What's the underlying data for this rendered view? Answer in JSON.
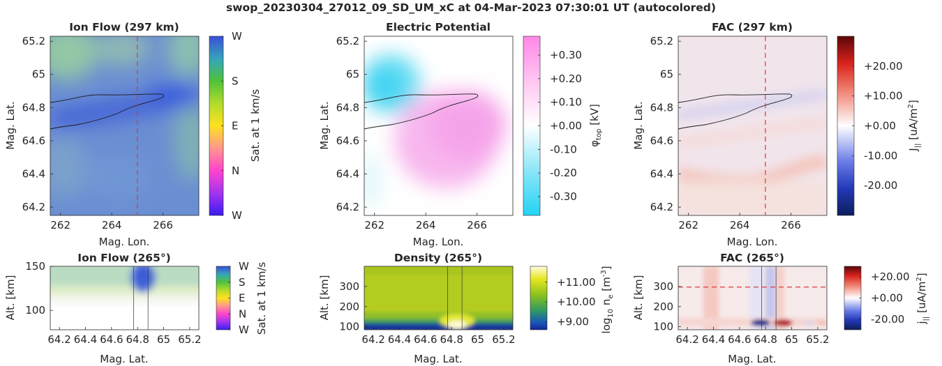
{
  "figure_title": "swop_20230304_27012_09_SD_UM_xC at 04-Mar-2023 07:30:01 UT (autocolored)",
  "chart_data": [
    {
      "id": "ionflow_map",
      "type": "heatmap",
      "title": "Ion Flow (297 km)",
      "xlabel": "Mag. Lon.",
      "ylabel": "Mag. Lat.",
      "xlim": [
        261.6,
        267.4
      ],
      "ylim": [
        64.15,
        65.23
      ],
      "xticks": [
        262,
        264,
        266
      ],
      "yticks": [
        64.2,
        64.4,
        64.6,
        64.8,
        65,
        65.2
      ],
      "colorbar": {
        "label": "Sat. at 1 km/s",
        "ticks": [
          "W",
          "N",
          "E",
          "S",
          "W"
        ],
        "colors": [
          "#3b1cf0",
          "#ff44cc",
          "#ffd21e",
          "#5bc52e",
          "#3a58d8"
        ]
      },
      "marker_line_x": 265,
      "marker_color": "#d9383a"
    },
    {
      "id": "potential_map",
      "type": "heatmap",
      "title": "Electric Potential",
      "xlabel": "Mag. Lon.",
      "ylabel": "Mag. Lat.",
      "xlim": [
        261.6,
        267.4
      ],
      "ylim": [
        64.15,
        65.23
      ],
      "xticks": [
        262,
        264,
        266
      ],
      "yticks": [
        64.2,
        64.4,
        64.6,
        64.8,
        65,
        65.2
      ],
      "colorbar": {
        "label_main": "φ",
        "label_sub": "top",
        "label_unit": " [kV]",
        "range": [
          -0.38,
          0.38
        ],
        "ticks": [
          0.3,
          0.2,
          0.1,
          0.0,
          -0.1,
          -0.2,
          -0.3
        ],
        "tick_labels": [
          "+0.30",
          "+0.20",
          "+0.10",
          "+0.00",
          "-0.10",
          "-0.20",
          "-0.30"
        ],
        "colors": [
          "#ff8be8",
          "#ffffff",
          "#2bd6f5"
        ]
      }
    },
    {
      "id": "fac_map",
      "type": "heatmap",
      "title": "FAC (297 km)",
      "xlabel": "Mag. Lon.",
      "ylabel": "Mag. Lat.",
      "xlim": [
        261.6,
        267.4
      ],
      "ylim": [
        64.15,
        65.23
      ],
      "xticks": [
        262,
        264,
        266
      ],
      "yticks": [
        64.2,
        64.4,
        64.6,
        64.8,
        65,
        65.2
      ],
      "colorbar": {
        "label_main": "J",
        "label_sub": "||",
        "label_unit": " [uA/m",
        "label_sup": "2",
        "label_close": "]",
        "range": [
          -30,
          30
        ],
        "ticks": [
          20,
          10,
          0,
          -10,
          -20
        ],
        "tick_labels": [
          "+20.00",
          "+10.00",
          "+0.00",
          "-10.00",
          "-20.00"
        ],
        "colors": [
          "#6a0a0f",
          "#e13b2d",
          "#ffffff",
          "#3a4fd8",
          "#0c1e5c"
        ]
      },
      "marker_line_x": 265,
      "marker_color": "#d9383a"
    },
    {
      "id": "ionflow_profile",
      "type": "heatmap",
      "title": "Ion Flow (265°)",
      "xlabel": "Mag. Lat.",
      "ylabel": "Alt. [km]",
      "xlim": [
        64.13,
        65.27
      ],
      "ylim": [
        78,
        150
      ],
      "xticks": [
        64.2,
        64.4,
        64.6,
        64.8,
        65,
        65.2
      ],
      "xtick_labels": [
        "64.2",
        "64.4",
        "64.6",
        "64.8",
        "65",
        "65.2"
      ],
      "yticks": [
        100,
        150
      ],
      "colorbar": {
        "label": "Sat. at 1 km/s",
        "ticks": [
          "W",
          "N",
          "E",
          "S",
          "W"
        ]
      },
      "track_lines_x": [
        64.77,
        64.88
      ]
    },
    {
      "id": "density_profile",
      "type": "heatmap",
      "title": "Density (265°)",
      "xlabel": "Mag. Lat.",
      "ylabel": "Alt. [km]",
      "xlim": [
        64.13,
        65.27
      ],
      "ylim": [
        85,
        400
      ],
      "xticks": [
        64.2,
        64.4,
        64.6,
        64.8,
        65,
        65.2
      ],
      "xtick_labels": [
        "64.2",
        "64.4",
        "64.6",
        "64.8",
        "65",
        "65.2"
      ],
      "yticks": [
        100,
        200,
        300
      ],
      "colorbar": {
        "label_main": "log",
        "label_sub": "10",
        "label_rest": " n",
        "label_sub2": "e",
        "label_unit": " [m",
        "label_sup": "-3",
        "label_close": "]",
        "range": [
          8.6,
          11.8
        ],
        "ticks": [
          11,
          10,
          9
        ],
        "tick_labels": [
          "+11.00",
          "+10.00",
          "+9.00"
        ]
      },
      "track_lines_x": [
        64.77,
        64.88
      ]
    },
    {
      "id": "fac_profile",
      "type": "heatmap",
      "title": "FAC (265°)",
      "xlabel": "Mag. Lat.",
      "ylabel": "Alt. [km]",
      "xlim": [
        64.13,
        65.27
      ],
      "ylim": [
        85,
        400
      ],
      "xticks": [
        64.2,
        64.4,
        64.6,
        64.8,
        65,
        65.2
      ],
      "xtick_labels": [
        "64.2",
        "64.4",
        "64.6",
        "64.8",
        "65",
        "65.2"
      ],
      "yticks": [
        100,
        200,
        300
      ],
      "colorbar": {
        "label_main": "j",
        "label_sub": "||",
        "label_unit": " [uA/m",
        "label_sup": "2",
        "label_close": "]",
        "range": [
          -30,
          30
        ],
        "ticks": [
          20,
          0,
          -20
        ],
        "tick_labels": [
          "+20.00",
          "+0.00",
          "-20.00"
        ]
      },
      "marker_line_y": 297,
      "marker_color": "#d9383a",
      "track_lines_x": [
        64.77,
        64.88
      ]
    }
  ]
}
